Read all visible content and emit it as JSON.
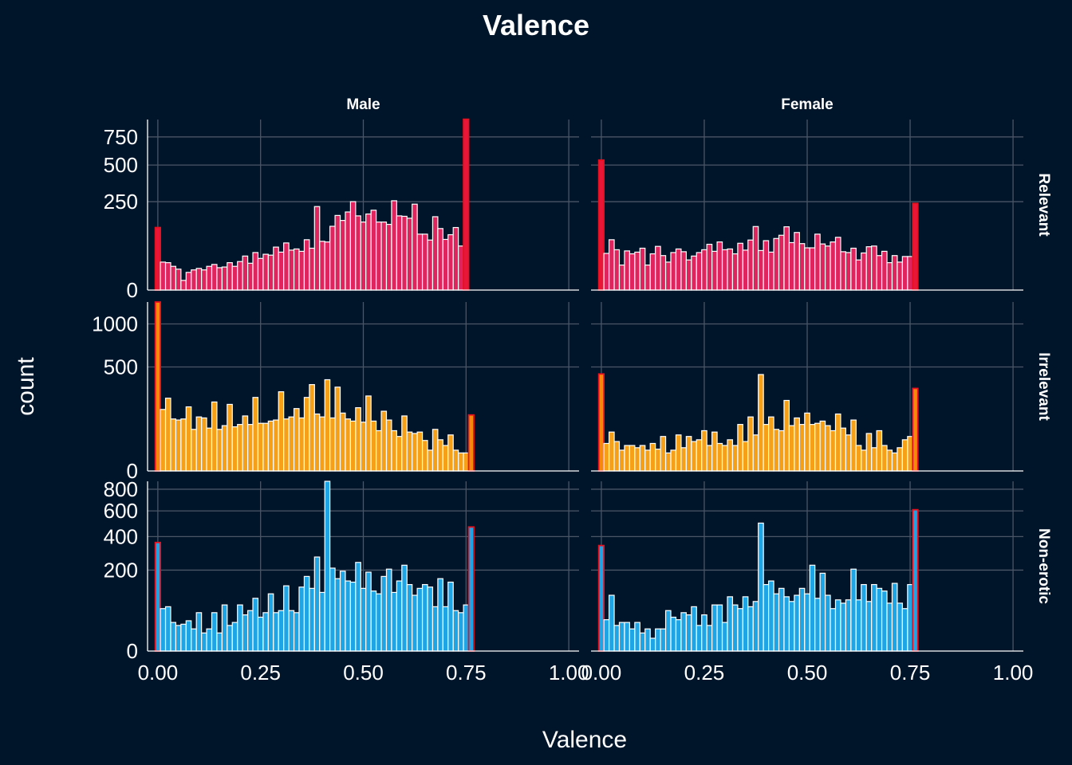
{
  "chart_data": {
    "type": "bar",
    "title": "Valence",
    "xlabel": "Valence",
    "ylabel": "count",
    "xlim": [
      -0.025,
      1.025
    ],
    "x_ticks": [
      0,
      0.25,
      0.5,
      0.75,
      1.0
    ],
    "x_tick_labels": [
      "0.00",
      "0.25",
      "0.50",
      "0.75",
      "1.00"
    ],
    "y_scale": "sqrt",
    "bin_width": 0.0125,
    "columns": [
      "Male",
      "Female"
    ],
    "rows": [
      {
        "name": "Relevant",
        "fill": "#e0245e",
        "edge_fill": "#e8173a",
        "ylim": [
          0,
          930
        ],
        "y_ticks": [
          0,
          250,
          500,
          750
        ],
        "y_tick_labels": [
          "0",
          "250",
          "500",
          "750"
        ]
      },
      {
        "name": "Irrelevant",
        "fill": "#f5a016",
        "edge_fill": "#f58a0a",
        "ylim": [
          0,
          1320
        ],
        "y_ticks": [
          0,
          500,
          1000
        ],
        "y_tick_labels": [
          "0",
          "500",
          "1000"
        ]
      },
      {
        "name": "Non-erotic",
        "fill": "#1ea5e6",
        "edge_fill": "#1ea5e6",
        "ylim": [
          0,
          880
        ],
        "y_ticks": [
          0,
          200,
          400,
          600,
          800
        ],
        "y_tick_labels": [
          "0",
          "200",
          "400",
          "600",
          "800"
        ]
      }
    ],
    "panels": [
      {
        "row": "Relevant",
        "col": "Male",
        "x_start": 0,
        "counts": [
          125,
          25,
          24,
          18,
          14,
          3,
          10,
          13,
          15,
          13,
          18,
          21,
          16,
          17,
          24,
          18,
          26,
          37,
          23,
          45,
          32,
          41,
          39,
          59,
          46,
          71,
          51,
          54,
          48,
          81,
          56,
          223,
          76,
          74,
          130,
          178,
          155,
          195,
          250,
          176,
          148,
          185,
          204,
          148,
          148,
          138,
          255,
          176,
          174,
          165,
          236,
          100,
          100,
          80,
          172,
          121,
          82,
          98,
          125,
          62,
          933
        ]
      },
      {
        "row": "Relevant",
        "col": "Female",
        "x_start": 0,
        "counts": [
          540,
          43,
          81,
          52,
          20,
          49,
          42,
          46,
          56,
          20,
          42,
          61,
          38,
          25,
          45,
          54,
          47,
          29,
          37,
          45,
          52,
          67,
          48,
          74,
          52,
          54,
          42,
          70,
          51,
          80,
          129,
          50,
          78,
          46,
          85,
          96,
          128,
          72,
          106,
          69,
          57,
          57,
          100,
          68,
          62,
          74,
          89,
          47,
          45,
          56,
          29,
          44,
          60,
          62,
          38,
          48,
          24,
          38,
          25,
          36,
          36,
          240
        ]
      },
      {
        "row": "Irrelevant",
        "col": "Male",
        "x_start": 0,
        "counts": [
          1320,
          175,
          245,
          125,
          120,
          125,
          190,
          80,
          135,
          130,
          85,
          220,
          80,
          95,
          205,
          90,
          100,
          140,
          100,
          250,
          105,
          105,
          115,
          120,
          290,
          125,
          135,
          180,
          130,
          250,
          345,
          150,
          135,
          385,
          130,
          325,
          155,
          125,
          115,
          185,
          110,
          260,
          115,
          75,
          165,
          120,
          75,
          55,
          140,
          70,
          65,
          70,
          43,
          20,
          80,
          45,
          30,
          60,
          20,
          15,
          15,
          145
        ]
      },
      {
        "row": "Irrelevant",
        "col": "Female",
        "x_start": 0,
        "counts": [
          435,
          35,
          70,
          40,
          20,
          30,
          30,
          25,
          30,
          20,
          35,
          22,
          55,
          15,
          20,
          60,
          25,
          55,
          40,
          45,
          75,
          30,
          70,
          35,
          30,
          45,
          30,
          100,
          40,
          135,
          60,
          430,
          100,
          135,
          80,
          75,
          230,
          95,
          130,
          100,
          155,
          100,
          105,
          115,
          95,
          75,
          150,
          85,
          60,
          120,
          30,
          20,
          65,
          25,
          75,
          30,
          20,
          15,
          25,
          45,
          55,
          315
        ]
      },
      {
        "row": "Non-erotic",
        "col": "Male",
        "x_start": 0,
        "counts": [
          360,
          55,
          60,
          25,
          20,
          22,
          28,
          15,
          45,
          10,
          15,
          45,
          10,
          65,
          20,
          25,
          65,
          40,
          50,
          85,
          35,
          45,
          100,
          45,
          50,
          130,
          50,
          45,
          125,
          170,
          120,
          270,
          105,
          880,
          210,
          160,
          195,
          150,
          145,
          240,
          120,
          190,
          110,
          100,
          170,
          205,
          105,
          150,
          225,
          135,
          95,
          120,
          135,
          125,
          60,
          160,
          60,
          145,
          50,
          45,
          65,
          470
        ]
      },
      {
        "row": "Non-erotic",
        "col": "Female",
        "x_start": 0,
        "counts": [
          340,
          30,
          95,
          20,
          25,
          25,
          15,
          25,
          10,
          15,
          5,
          15,
          15,
          50,
          35,
          30,
          45,
          40,
          60,
          20,
          40,
          20,
          65,
          65,
          25,
          90,
          65,
          55,
          90,
          60,
          75,
          500,
          135,
          150,
          100,
          120,
          90,
          75,
          95,
          120,
          100,
          225,
          85,
          185,
          95,
          55,
          80,
          70,
          80,
          205,
          80,
          135,
          75,
          135,
          120,
          110,
          70,
          140,
          70,
          55,
          135,
          610
        ]
      }
    ]
  }
}
